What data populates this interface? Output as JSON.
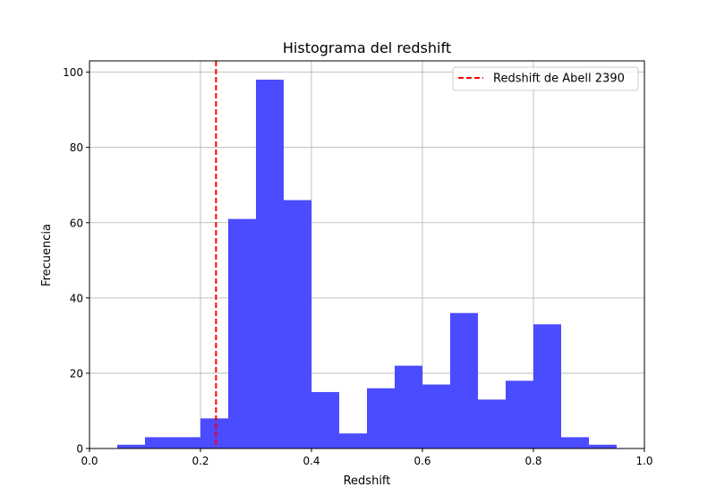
{
  "chart_data": {
    "type": "bar",
    "title": "Histograma del redshift",
    "xlabel": "Redshift",
    "ylabel": "Frecuencia",
    "xlim": [
      0.0,
      1.0
    ],
    "ylim": [
      0,
      103
    ],
    "xticks": [
      "0.0",
      "0.2",
      "0.4",
      "0.6",
      "0.8",
      "1.0"
    ],
    "yticks": [
      "0",
      "20",
      "40",
      "60",
      "80",
      "100"
    ],
    "grid": true,
    "bar_color": "#4b4bff",
    "bins": [
      {
        "start": 0.05,
        "end": 0.1,
        "count": 1
      },
      {
        "start": 0.1,
        "end": 0.15,
        "count": 3
      },
      {
        "start": 0.15,
        "end": 0.2,
        "count": 3
      },
      {
        "start": 0.2,
        "end": 0.25,
        "count": 8
      },
      {
        "start": 0.25,
        "end": 0.3,
        "count": 61
      },
      {
        "start": 0.3,
        "end": 0.35,
        "count": 98
      },
      {
        "start": 0.35,
        "end": 0.4,
        "count": 66
      },
      {
        "start": 0.4,
        "end": 0.45,
        "count": 15
      },
      {
        "start": 0.45,
        "end": 0.5,
        "count": 4
      },
      {
        "start": 0.5,
        "end": 0.55,
        "count": 16
      },
      {
        "start": 0.55,
        "end": 0.6,
        "count": 22
      },
      {
        "start": 0.6,
        "end": 0.65,
        "count": 17
      },
      {
        "start": 0.65,
        "end": 0.7,
        "count": 36
      },
      {
        "start": 0.7,
        "end": 0.75,
        "count": 13
      },
      {
        "start": 0.75,
        "end": 0.8,
        "count": 18
      },
      {
        "start": 0.8,
        "end": 0.85,
        "count": 33
      },
      {
        "start": 0.85,
        "end": 0.9,
        "count": 3
      },
      {
        "start": 0.9,
        "end": 0.95,
        "count": 1
      }
    ],
    "reference_line": {
      "x": 0.228,
      "label": "Redshift de Abell 2390",
      "color": "#ff0000",
      "style": "dashed"
    },
    "legend_position": "top-right"
  }
}
